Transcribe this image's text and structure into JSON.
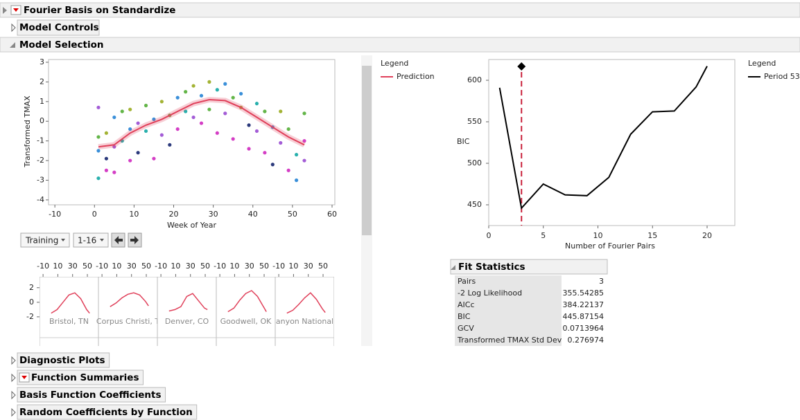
{
  "header": {
    "title": "Fourier Basis on Standardize"
  },
  "sections": [
    "Model Controls",
    "Model Selection"
  ],
  "controls": {
    "subset": "Training",
    "range": "1-16"
  },
  "chart_data": [
    {
      "type": "scatter",
      "xlabel": "Week of Year",
      "ylabel": "Transformed TMAX",
      "xlim": [
        -11.6,
        60.7
      ],
      "xticks": [
        -10,
        0,
        10,
        20,
        30,
        40,
        50,
        60
      ],
      "ylim": [
        -4.25,
        3.14
      ],
      "yticks": [
        -4,
        -3,
        -2,
        -1,
        0,
        1,
        2,
        3
      ],
      "legend_title": "Legend",
      "series": [
        {
          "name": "Prediction",
          "color": "#e0405a",
          "x": [
            1,
            5,
            9,
            13,
            17,
            21,
            25,
            29,
            33,
            37,
            41,
            45,
            49,
            53
          ],
          "values": [
            -1.3,
            -1.2,
            -0.6,
            -0.2,
            0.1,
            0.5,
            0.9,
            1.1,
            1.05,
            0.7,
            0.2,
            -0.3,
            -0.8,
            -1.2
          ]
        }
      ],
      "points": {
        "x": [
          1,
          1,
          1,
          1,
          3,
          3,
          3,
          5,
          5,
          5,
          7,
          7,
          9,
          9,
          9,
          11,
          11,
          13,
          13,
          15,
          15,
          17,
          17,
          19,
          19,
          21,
          21,
          23,
          23,
          25,
          25,
          27,
          27,
          29,
          29,
          31,
          31,
          33,
          33,
          35,
          35,
          37,
          37,
          39,
          39,
          41,
          41,
          43,
          43,
          45,
          45,
          47,
          47,
          49,
          49,
          51,
          51,
          53,
          53,
          53
        ],
        "values": [
          -2.9,
          0.7,
          -1.5,
          -0.8,
          -2.5,
          -0.6,
          -1.9,
          0.2,
          -1.3,
          -2.6,
          0.5,
          -1,
          -0.4,
          -2,
          0.6,
          -0.1,
          -1.6,
          0.8,
          -0.5,
          0.1,
          -1.9,
          1,
          -0.7,
          0.3,
          -1.2,
          1.2,
          -0.4,
          0.5,
          1.5,
          0.2,
          1.8,
          -0.1,
          1.3,
          2,
          0.6,
          1.6,
          -0.6,
          1.9,
          0.4,
          1.2,
          -0.9,
          0.7,
          1.4,
          -0.2,
          -1.4,
          0.9,
          -0.5,
          0.5,
          -1.6,
          -0.3,
          -2.2,
          0.5,
          -1.1,
          -0.4,
          -2.5,
          -1.7,
          -3,
          0.4,
          -1,
          -2
        ],
        "colors": [
          "#29b0ad",
          "#a35cd6",
          "#3a8fd9",
          "#63b548",
          "#d43ec5",
          "#a3b334",
          "#2c3a7c",
          "#3a8fd9",
          "#a35cd6",
          "#d43ec5",
          "#63b548",
          "#29b0ad",
          "#3a8fd9",
          "#d43ec5",
          "#a3b334",
          "#a35cd6",
          "#2c3a7c",
          "#63b548",
          "#29b0ad",
          "#3a8fd9",
          "#d43ec5",
          "#a3b334",
          "#a35cd6",
          "#63b548",
          "#2c3a7c",
          "#3a8fd9",
          "#d43ec5",
          "#29b0ad",
          "#63b548",
          "#a35cd6",
          "#a3b334",
          "#d43ec5",
          "#3a8fd9",
          "#a3b334",
          "#63b548",
          "#29b0ad",
          "#d43ec5",
          "#3a8fd9",
          "#a35cd6",
          "#63b548",
          "#d43ec5",
          "#a3b334",
          "#3a8fd9",
          "#2c3a7c",
          "#d43ec5",
          "#29b0ad",
          "#a35cd6",
          "#63b548",
          "#d43ec5",
          "#3a8fd9",
          "#2c3a7c",
          "#a3b334",
          "#a35cd6",
          "#63b548",
          "#d43ec5",
          "#29b0ad",
          "#3a8fd9",
          "#63b548",
          "#d43ec5",
          "#a35cd6"
        ]
      }
    },
    {
      "type": "line",
      "xlabel": "Number of Fourier Pairs",
      "ylabel": "BIC",
      "xlim": [
        0,
        22.54
      ],
      "xticks": [
        0,
        5,
        10,
        15,
        20
      ],
      "ylim": [
        425,
        625
      ],
      "yticks": [
        450,
        500,
        550,
        600
      ],
      "legend_title": "Legend",
      "selected_x": 3,
      "series": [
        {
          "name": "Period 53",
          "color": "#000000",
          "x": [
            1,
            3,
            5,
            7,
            9,
            11,
            13,
            15,
            17,
            19,
            20
          ],
          "values": [
            591,
            446,
            475,
            462,
            461,
            483,
            535,
            562,
            563,
            592,
            617
          ]
        }
      ]
    },
    {
      "type": "small_multiples",
      "line_color": "#e0405a",
      "xlim": [
        -14.8,
        65
      ],
      "xticks": [
        -10,
        10,
        30,
        50
      ],
      "ylim": [
        -6,
        3.5
      ],
      "yticks": [
        2,
        0,
        -2
      ],
      "panels": [
        {
          "name": "Bristol, TN",
          "x": [
            1,
            9,
            17,
            25,
            33,
            41,
            49,
            53
          ],
          "values": [
            -1.5,
            -1,
            0,
            1,
            1.3,
            0.5,
            -1,
            -1.5
          ]
        },
        {
          "name": "Corpus Christi, T",
          "x": [
            1,
            9,
            17,
            25,
            33,
            41,
            49,
            53
          ],
          "values": [
            -0.6,
            -0.1,
            0.6,
            1.1,
            1.3,
            1,
            0.1,
            -0.5
          ]
        },
        {
          "name": "Denver, CO",
          "x": [
            1,
            9,
            17,
            25,
            33,
            41,
            49,
            53
          ],
          "values": [
            -1.2,
            -1,
            -0.6,
            0.8,
            1.2,
            0.2,
            -0.8,
            -1
          ]
        },
        {
          "name": "Goodwell, OK",
          "x": [
            1,
            9,
            17,
            25,
            33,
            41,
            49,
            53
          ],
          "values": [
            -1.3,
            -0.8,
            0.3,
            1.2,
            1.6,
            0.8,
            -0.6,
            -1.3
          ]
        },
        {
          "name": "anyon National",
          "x": [
            1,
            9,
            17,
            25,
            33,
            41,
            49,
            53
          ],
          "values": [
            -1.5,
            -1.1,
            -0.3,
            0.6,
            1.3,
            0.4,
            -0.9,
            -1.4
          ]
        }
      ]
    }
  ],
  "fit_statistics": {
    "title": "Fit Statistics",
    "rows": [
      [
        "Pairs",
        "3"
      ],
      [
        "-2 Log Likelihood",
        "355.54285"
      ],
      [
        "AICc",
        "384.22137"
      ],
      [
        "BIC",
        "445.87154"
      ],
      [
        "GCV",
        "0.0713964"
      ],
      [
        "Transformed TMAX Std Dev",
        "0.276974"
      ]
    ]
  },
  "outline": [
    "Diagnostic Plots",
    "Function Summaries",
    "Basis Function Coefficients",
    "Random Coefficients by Function"
  ]
}
